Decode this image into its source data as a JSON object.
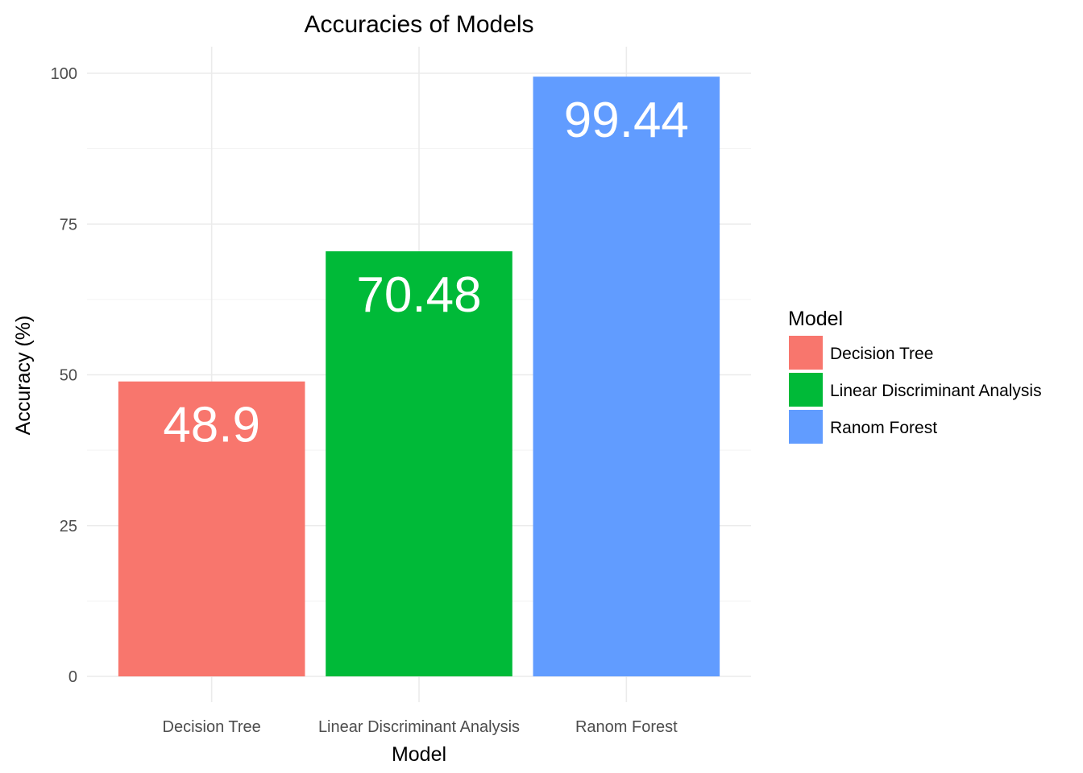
{
  "chart_data": {
    "type": "bar",
    "title": "Accuracies of Models",
    "xlabel": "Model",
    "ylabel": "Accuracy (%)",
    "categories": [
      "Decision Tree",
      "Linear Discriminant Analysis",
      "Ranom Forest"
    ],
    "values": [
      48.9,
      70.48,
      99.44
    ],
    "value_labels": [
      "48.9",
      "70.48",
      "99.44"
    ],
    "colors": [
      "#F8766D",
      "#00BA38",
      "#619CFF"
    ],
    "ylim": [
      0,
      100
    ],
    "yticks": [
      0,
      25,
      50,
      75,
      100
    ],
    "ytick_labels": [
      "0",
      "25",
      "50",
      "75",
      "100"
    ],
    "grid": true,
    "legend": {
      "title": "Model",
      "placement": "right",
      "entries": [
        "Decision Tree",
        "Linear Discriminant Analysis",
        "Ranom Forest"
      ]
    }
  }
}
